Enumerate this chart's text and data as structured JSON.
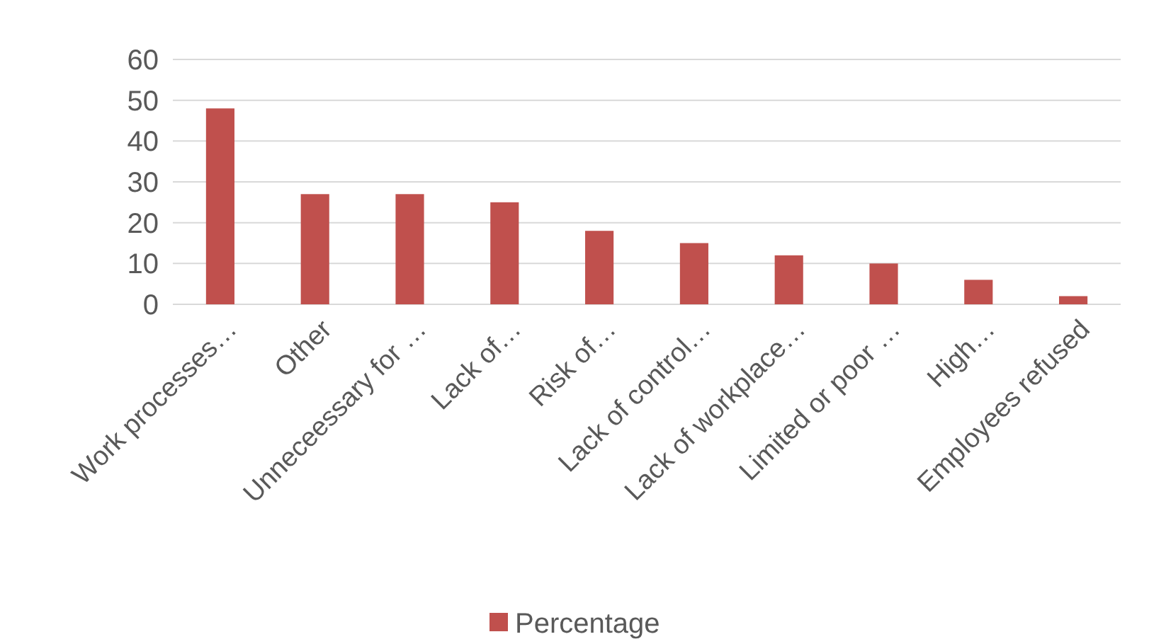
{
  "chart_data": {
    "type": "bar",
    "categories": [
      "Work processes…",
      "Other",
      "Unneceessary for …",
      "Lack of…",
      "Risk of…",
      "Lack of control…",
      "Lack of workplace…",
      "Limited or poor …",
      "High…",
      "Employees refused"
    ],
    "series": [
      {
        "name": "Percentage",
        "color": "#c0504d",
        "values": [
          48,
          27,
          27,
          25,
          18,
          15,
          12,
          10,
          6,
          2
        ]
      }
    ],
    "ylim": [
      0,
      60
    ],
    "yticks": [
      0,
      10,
      20,
      30,
      40,
      50,
      60
    ],
    "grid": "y",
    "legend": "bottom"
  }
}
